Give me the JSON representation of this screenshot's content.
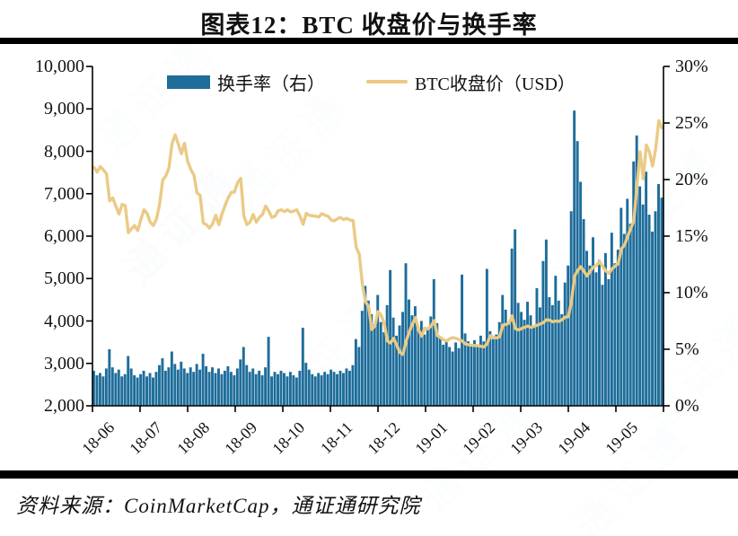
{
  "figure": {
    "title": "图表12：BTC 收盘价与换手率",
    "source_note": "资料来源：CoinMarketCap，通证通研究院",
    "watermark_text": "通证通"
  },
  "legend": {
    "items": [
      {
        "label": "换手率（右）",
        "marker": "bar",
        "color": "#1E6D9B"
      },
      {
        "label": "BTC收盘价（USD）",
        "marker": "line",
        "color": "#EACA85"
      }
    ]
  },
  "colors": {
    "bar": "#1E6D9B",
    "line": "#EACA85",
    "axis": "#000000",
    "rule": "#000000"
  },
  "chart_data": {
    "type": "bar+line",
    "title": "图表12：BTC 收盘价与换手率",
    "grid": false,
    "legend_position": "top-center",
    "x_axis": {
      "tick_labels": [
        "18-06",
        "18-07",
        "18-08",
        "18-09",
        "18-10",
        "18-11",
        "18-12",
        "19-01",
        "19-02",
        "19-03",
        "19-04",
        "19-05"
      ],
      "start": "2018-06-01",
      "end": "2019-05-31",
      "sample_step_days": 2
    },
    "left_axis": {
      "applies_to": "BTC收盘价（USD）",
      "min": 2000,
      "max": 10000,
      "tick_labels_top_to_bottom": [
        "10,000",
        "9,000",
        "8,000",
        "7,000",
        "6,000",
        "5,000",
        "4,000",
        "3,000",
        "2,000"
      ]
    },
    "right_axis": {
      "applies_to": "换手率（右）",
      "min": 0,
      "max": 30,
      "unit": "%",
      "tick_labels_top_to_bottom": [
        "30%",
        "25%",
        "20%",
        "15%",
        "10%",
        "5%",
        "0%"
      ]
    },
    "series": [
      {
        "name": "换手率（右）",
        "type": "bar",
        "axis": "right",
        "unit": "%",
        "color": "#1E6D9B",
        "values": [
          3.1,
          2.7,
          2.9,
          2.6,
          3.3,
          5.0,
          3.4,
          2.9,
          3.2,
          2.6,
          2.8,
          4.4,
          3.3,
          2.7,
          2.5,
          2.8,
          3.1,
          2.6,
          2.9,
          2.5,
          3.0,
          3.6,
          4.2,
          3.1,
          3.4,
          4.8,
          3.7,
          3.2,
          3.9,
          3.3,
          2.9,
          3.4,
          3.0,
          3.7,
          3.2,
          4.6,
          3.5,
          3.0,
          3.4,
          2.9,
          3.3,
          2.8,
          3.1,
          3.5,
          3.0,
          2.7,
          3.3,
          4.1,
          5.2,
          3.6,
          3.0,
          3.3,
          2.8,
          3.1,
          2.7,
          3.4,
          6.1,
          2.6,
          3.0,
          2.8,
          3.1,
          2.9,
          2.6,
          3.0,
          2.7,
          2.5,
          3.1,
          6.9,
          3.8,
          3.2,
          2.8,
          2.6,
          2.9,
          2.7,
          3.0,
          2.8,
          3.2,
          3.0,
          2.8,
          3.1,
          2.9,
          3.3,
          3.1,
          3.6,
          5.9,
          5.2,
          8.4,
          10.6,
          9.3,
          8.1,
          7.2,
          9.8,
          7.4,
          6.5,
          8.9,
          12.0,
          7.8,
          6.2,
          7.1,
          8.3,
          12.6,
          9.4,
          8.0,
          8.8,
          6.9,
          7.5,
          6.3,
          6.8,
          7.9,
          11.2,
          7.3,
          6.1,
          5.4,
          5.9,
          5.2,
          4.8,
          5.6,
          5.1,
          11.6,
          6.4,
          5.7,
          5.3,
          5.8,
          5.4,
          6.2,
          5.7,
          12.1,
          6.6,
          5.9,
          6.3,
          7.4,
          9.8,
          8.5,
          7.2,
          13.9,
          15.6,
          9.1,
          8.3,
          7.6,
          9.2,
          8.0,
          7.1,
          10.4,
          8.7,
          12.8,
          14.7,
          9.6,
          8.9,
          11.5,
          9.3,
          8.1,
          10.9,
          12.4,
          17.2,
          26.1,
          23.4,
          19.8,
          16.5,
          13.7,
          12.4,
          14.9,
          11.8,
          12.9,
          10.7,
          13.5,
          11.2,
          15.3,
          12.6,
          13.8,
          17.5,
          15.2,
          18.3,
          16.1,
          21.6,
          23.9,
          19.4,
          17.8,
          20.7,
          16.9,
          15.4,
          17.2,
          19.6,
          18.4
        ]
      },
      {
        "name": "BTC收盘价（USD）",
        "type": "line",
        "axis": "left",
        "unit": "USD",
        "color": "#EACA85",
        "values": [
          7620,
          7510,
          7640,
          7560,
          7470,
          6830,
          6900,
          6700,
          6520,
          6750,
          6720,
          6080,
          6170,
          6250,
          6130,
          6390,
          6620,
          6540,
          6330,
          6250,
          6400,
          6740,
          7320,
          7420,
          7600,
          8180,
          8390,
          8170,
          7940,
          8190,
          7760,
          7570,
          7440,
          7020,
          6960,
          6310,
          6270,
          6190,
          6290,
          6490,
          6270,
          6520,
          6720,
          6910,
          7030,
          7040,
          7260,
          7360,
          6480,
          6270,
          6330,
          6510,
          6330,
          6440,
          6510,
          6710,
          6590,
          6440,
          6470,
          6600,
          6620,
          6580,
          6620,
          6570,
          6590,
          6620,
          6470,
          6280,
          6540,
          6490,
          6480,
          6470,
          6450,
          6530,
          6490,
          6470,
          6380,
          6360,
          6410,
          6440,
          6390,
          6420,
          6380,
          6370,
          5740,
          5580,
          4870,
          4450,
          4340,
          3800,
          3880,
          4220,
          4140,
          3940,
          3530,
          3480,
          3590,
          3430,
          3260,
          3210,
          3520,
          3740,
          3920,
          4080,
          3790,
          3640,
          3830,
          3810,
          3880,
          4010,
          3660,
          3610,
          3560,
          3530,
          3580,
          3610,
          3590,
          3560,
          3530,
          3460,
          3440,
          3430,
          3420,
          3420,
          3400,
          3390,
          3460,
          3650,
          3620,
          3600,
          3630,
          3900,
          3920,
          3950,
          4120,
          3820,
          3790,
          3820,
          3850,
          3880,
          3850,
          3870,
          3900,
          3930,
          3960,
          4030,
          4020,
          3980,
          4000,
          3990,
          4030,
          4090,
          4100,
          4460,
          5060,
          5190,
          5280,
          5170,
          5060,
          5170,
          5270,
          5310,
          5400,
          5290,
          5180,
          5120,
          5230,
          5290,
          5350,
          5700,
          5790,
          5990,
          6180,
          6360,
          7200,
          7990,
          7350,
          8150,
          7980,
          7650,
          8050,
          8720,
          8550
        ]
      }
    ]
  }
}
